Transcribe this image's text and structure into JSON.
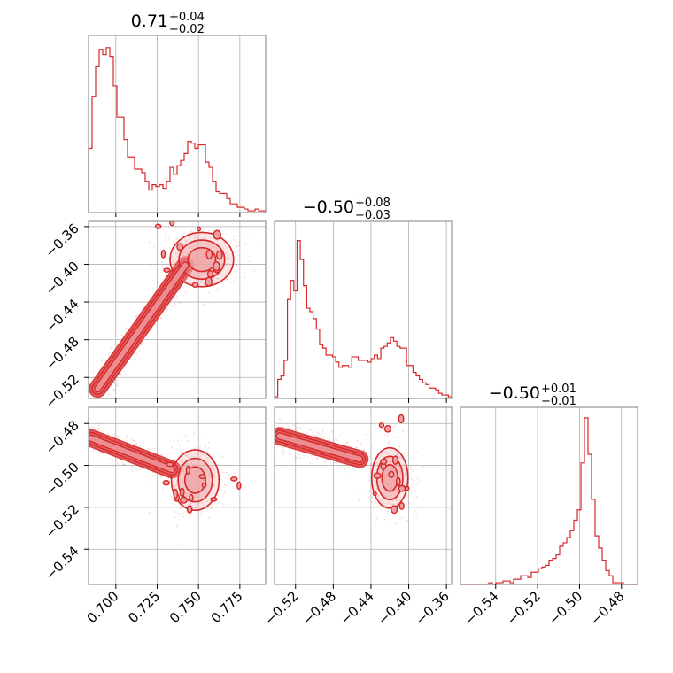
{
  "colors": {
    "main": "#d62728",
    "fill": "#f0a0a2",
    "grid": "#b0b0b0",
    "frame": "#808080"
  },
  "chart_data": {
    "type": "corner",
    "params": [
      {
        "id": "p0",
        "median": 0.71,
        "plus": 0.04,
        "minus": 0.02,
        "title_value": "0.71",
        "title_plus": "+0.04",
        "title_minus": "−0.02",
        "range": [
          0.6835,
          0.7906
        ],
        "ticks": [
          0.7,
          0.725,
          0.75,
          0.775
        ],
        "tick_labels": [
          "0.700",
          "0.725",
          "0.750",
          "0.775"
        ]
      },
      {
        "id": "p1",
        "median": -0.5,
        "plus": 0.08,
        "minus": 0.03,
        "title_value": "−0.50",
        "title_plus": "+0.08",
        "title_minus": "−0.03",
        "range": [
          -0.5423,
          -0.3545
        ],
        "ticks": [
          -0.52,
          -0.48,
          -0.44,
          -0.4,
          -0.36
        ],
        "tick_labels": [
          "−0.52",
          "−0.48",
          "−0.44",
          "−0.40",
          "−0.36"
        ]
      },
      {
        "id": "p2",
        "median": -0.5,
        "plus": 0.01,
        "minus": 0.01,
        "title_value": "−0.50",
        "title_plus": "+0.01",
        "title_minus": "−0.01",
        "range": [
          -0.5568,
          -0.4723
        ],
        "ticks": [
          -0.54,
          -0.52,
          -0.5,
          -0.48
        ],
        "tick_labels": [
          "−0.54",
          "−0.52",
          "−0.50",
          "−0.48"
        ]
      }
    ],
    "histograms": [
      {
        "param": 0,
        "counts": [
          0.37,
          0.67,
          0.84,
          0.94,
          0.91,
          0.95,
          0.9,
          0.73,
          0.55,
          0.55,
          0.42,
          0.32,
          0.32,
          0.25,
          0.25,
          0.23,
          0.18,
          0.13,
          0.16,
          0.15,
          0.16,
          0.14,
          0.18,
          0.26,
          0.22,
          0.27,
          0.3,
          0.34,
          0.41,
          0.4,
          0.37,
          0.39,
          0.39,
          0.29,
          0.26,
          0.18,
          0.12,
          0.11,
          0.11,
          0.08,
          0.05,
          0.05,
          0.03,
          0.03,
          0.02,
          0.01,
          0.01,
          0.02,
          0.01,
          0.01
        ]
      },
      {
        "param": 1,
        "counts": [
          0.01,
          0.11,
          0.13,
          0.22,
          0.57,
          0.68,
          0.62,
          0.91,
          0.8,
          0.65,
          0.52,
          0.5,
          0.46,
          0.4,
          0.31,
          0.29,
          0.25,
          0.25,
          0.24,
          0.21,
          0.18,
          0.19,
          0.19,
          0.18,
          0.24,
          0.24,
          0.22,
          0.22,
          0.22,
          0.21,
          0.23,
          0.25,
          0.23,
          0.29,
          0.3,
          0.32,
          0.35,
          0.33,
          0.3,
          0.29,
          0.29,
          0.19,
          0.19,
          0.15,
          0.13,
          0.11,
          0.09,
          0.08,
          0.06,
          0.06,
          0.05,
          0.03,
          0.02,
          0.02,
          0.01
        ]
      },
      {
        "param": 2,
        "counts": [
          0.0,
          0.0,
          0.0,
          0.0,
          0.0,
          0.0,
          0.0,
          0.0,
          0.01,
          0.0,
          0.01,
          0.01,
          0.02,
          0.02,
          0.01,
          0.03,
          0.03,
          0.05,
          0.05,
          0.04,
          0.07,
          0.07,
          0.09,
          0.1,
          0.11,
          0.14,
          0.15,
          0.17,
          0.22,
          0.24,
          0.27,
          0.31,
          0.37,
          0.43,
          0.7,
          0.96,
          0.75,
          0.49,
          0.28,
          0.21,
          0.14,
          0.08,
          0.05,
          0.01,
          0.01,
          0.01,
          0.0,
          0.0,
          0.0,
          0.0
        ]
      }
    ],
    "scatter_clusters": [
      {
        "x": 1,
        "y": 0,
        "main_from": [
          0.689,
          -0.532
        ],
        "main_to": [
          0.742,
          -0.401
        ],
        "secondary_center": [
          0.752,
          -0.395
        ],
        "secondary_spread": [
          0.012,
          0.018
        ]
      },
      {
        "x": 2,
        "y": 0,
        "main_from": [
          0.685,
          -0.487
        ],
        "main_to": [
          0.734,
          -0.502
        ],
        "secondary_center": [
          0.748,
          -0.507
        ],
        "secondary_spread": [
          0.009,
          0.009
        ]
      },
      {
        "x": 2,
        "y": 1,
        "main_from": [
          -0.537,
          -0.486
        ],
        "main_to": [
          -0.452,
          -0.497
        ],
        "secondary_center": [
          -0.42,
          -0.506
        ],
        "secondary_spread": [
          0.012,
          0.009
        ]
      }
    ]
  }
}
